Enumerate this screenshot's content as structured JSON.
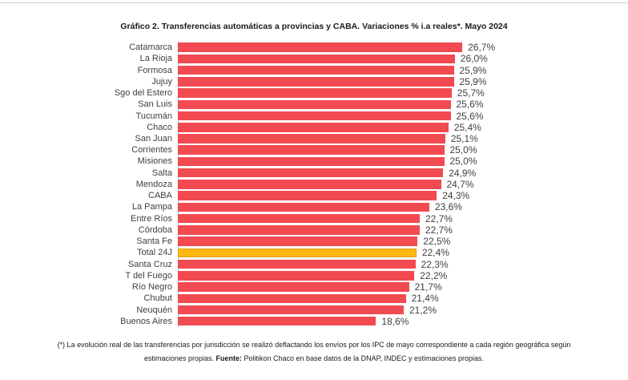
{
  "title": "Gráfico 2. Transferencias automáticas a provincias y CABA. Variaciones % i.a reales*. Mayo 2024",
  "chart_data": {
    "type": "bar",
    "orientation": "horizontal",
    "title": "Gráfico 2. Transferencias automáticas a provincias y CABA. Variaciones % i.a reales*. Mayo 2024",
    "categories": [
      "Catamarca",
      "La Rioja",
      "Formosa",
      "Jujuy",
      "Sgo del Estero",
      "San Luis",
      "Tucumán",
      "Chaco",
      "San Juan",
      "Corrientes",
      "Misiones",
      "Salta",
      "Mendoza",
      "CABA",
      "La Pampa",
      "Entre Ríos",
      "Córdoba",
      "Santa Fe",
      "Total 24J",
      "Santa Cruz",
      "T del Fuego",
      "Río Negro",
      "Chubut",
      "Neuquén",
      "Buenos Aires"
    ],
    "values": [
      26.7,
      26.0,
      25.9,
      25.9,
      25.7,
      25.6,
      25.6,
      25.4,
      25.1,
      25.0,
      25.0,
      24.9,
      24.7,
      24.3,
      23.6,
      22.7,
      22.7,
      22.5,
      22.4,
      22.3,
      22.2,
      21.7,
      21.4,
      21.2,
      18.6
    ],
    "value_labels": [
      "26,7%",
      "26,0%",
      "25,9%",
      "25,9%",
      "25,7%",
      "25,6%",
      "25,6%",
      "25,4%",
      "25,1%",
      "25,0%",
      "25,0%",
      "24,9%",
      "24,7%",
      "24,3%",
      "23,6%",
      "22,7%",
      "22,7%",
      "22,5%",
      "22,4%",
      "22,3%",
      "22,2%",
      "21,7%",
      "21,4%",
      "21,2%",
      "18,6%"
    ],
    "highlight_category": "Total 24J",
    "bar_color": "#F14A50",
    "highlight_color": "#FDB913",
    "highlight_border_color": "#DFA018",
    "axis_color": "#BFBFBF",
    "xlim": [
      0,
      27
    ],
    "grid": false,
    "legend": "none",
    "value_labels_position": "end-of-bar"
  },
  "footer": {
    "note": "(*) La evolución real de las transferencias por jurisdicción se realizó deflactando los envíos por los IPC de mayo correspondiente a cada región geográfica según estimaciones propias. ",
    "fuente_label": "Fuente:",
    "fuente_text": " Politikon Chaco en base datos de la DNAP, INDEC y estimaciones propias."
  }
}
